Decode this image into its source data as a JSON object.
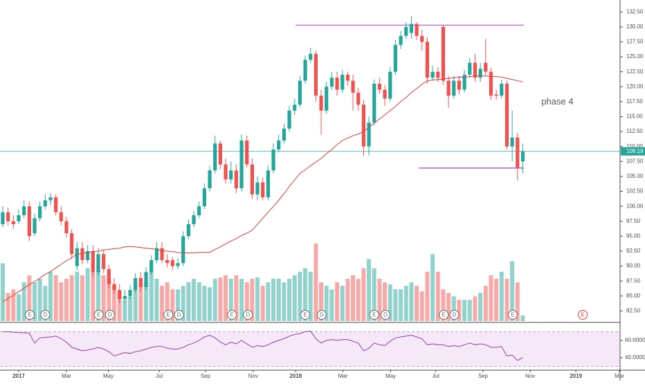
{
  "chart_data": {
    "type": "candlestick",
    "up_color": "#26a69a",
    "down_color": "#ef5350",
    "x": [
      -3,
      -2,
      -1,
      0,
      1,
      2,
      3,
      4,
      5,
      6,
      7,
      8,
      9,
      10,
      11,
      12,
      13,
      14,
      15,
      16,
      17,
      18,
      19,
      20,
      21,
      22,
      23,
      24,
      25,
      26,
      27,
      28,
      29,
      30,
      31,
      32,
      33,
      34,
      35,
      36,
      37,
      38,
      39,
      40,
      41,
      42,
      43,
      44,
      45,
      46,
      47,
      48,
      49,
      50,
      51,
      52,
      53,
      54,
      55,
      56,
      57,
      58,
      59,
      60,
      61,
      62,
      63,
      64,
      65,
      66,
      67,
      68,
      69,
      70,
      71,
      72,
      73,
      74,
      75,
      76,
      77,
      78,
      79,
      80,
      81,
      82,
      83,
      84,
      85,
      86,
      87,
      88,
      89,
      90,
      91,
      92,
      93,
      94,
      95
    ],
    "open": [
      97,
      99,
      97.5,
      97.5,
      98.5,
      100,
      95.5,
      98,
      100,
      101,
      101.5,
      99,
      97.5,
      95.5,
      90,
      93,
      91,
      92.5,
      89,
      92,
      89.5,
      87,
      86,
      84.5,
      85,
      86,
      88,
      86.5,
      89,
      91,
      93,
      91,
      91,
      90,
      90.5,
      95,
      97,
      98.5,
      100,
      103,
      106,
      110.5,
      107,
      104.5,
      106,
      103,
      111,
      107,
      102,
      104,
      101.5,
      106,
      109.5,
      111,
      113,
      116,
      117,
      121,
      124.5,
      125.5,
      118.5,
      116,
      120,
      121.5,
      119.5,
      122,
      121,
      119,
      117,
      110,
      114,
      120.5,
      119.5,
      118,
      122.5,
      127,
      128.5,
      129,
      130.5,
      128.5,
      127.5,
      121.5,
      122.5,
      130,
      121,
      118.5,
      121,
      119.5,
      122,
      124,
      121.5,
      124,
      122.5,
      118.7,
      118.5,
      120.5,
      110,
      111.5,
      107.5
    ],
    "high": [
      100,
      99.8,
      98.5,
      99.5,
      101,
      100.8,
      98.8,
      100.8,
      102,
      102.2,
      102,
      100,
      98.2,
      96.2,
      94,
      94,
      93.5,
      93.5,
      93,
      92.8,
      90.2,
      88,
      87,
      86,
      86.8,
      88.8,
      89,
      89.8,
      91.8,
      94,
      94,
      92,
      91.5,
      91.3,
      95.8,
      97.8,
      99.2,
      100.8,
      103.8,
      106.8,
      111.8,
      111,
      108,
      107.5,
      107,
      112,
      111.8,
      108,
      105,
      104.8,
      106.8,
      110.5,
      112,
      113.8,
      116.8,
      118,
      121.8,
      125.2,
      126.5,
      126,
      119.5,
      120.8,
      122.5,
      122.5,
      122.8,
      122.5,
      122,
      119.8,
      117.8,
      115,
      121.2,
      121.5,
      120.3,
      123.3,
      127.8,
      129.3,
      130.8,
      131.8,
      130.8,
      129.5,
      128.3,
      123.5,
      123.3,
      130.3,
      121.8,
      121.8,
      121.8,
      122.8,
      124.8,
      125.5,
      124,
      128,
      123.2,
      119.5,
      121.2,
      121,
      116,
      112.3,
      110.5
    ],
    "low": [
      96.5,
      96.8,
      96.2,
      97,
      98,
      94.2,
      95,
      97.5,
      99.5,
      100.2,
      98.5,
      96.8,
      94.8,
      91.2,
      89.3,
      90.3,
      90.5,
      88.3,
      88.4,
      88.8,
      86.3,
      85.3,
      83.8,
      84,
      84.5,
      85.5,
      85.8,
      86,
      88.5,
      90.5,
      90.5,
      89.8,
      89.3,
      89.5,
      90,
      94.5,
      96.5,
      98,
      99.5,
      102.5,
      105.5,
      106.2,
      103.8,
      103.8,
      102.2,
      102.5,
      106.5,
      101.2,
      101,
      101,
      101,
      105.5,
      109,
      110.5,
      112.5,
      115.3,
      116.5,
      120.5,
      124,
      117.5,
      112,
      115.5,
      119.5,
      118.5,
      119,
      120.2,
      116,
      116,
      108.5,
      108.5,
      113.5,
      118.8,
      116.8,
      117.5,
      122,
      126.3,
      128,
      128,
      127.8,
      126,
      120.5,
      121,
      120.8,
      120.3,
      116.5,
      118,
      118.7,
      119,
      121.5,
      120.8,
      120.8,
      121.8,
      117.8,
      117.8,
      118,
      109.5,
      107.5,
      104.3,
      105.5
    ],
    "close": [
      99,
      97.5,
      97,
      98.5,
      100,
      95,
      98,
      100,
      101,
      101.5,
      99,
      97.5,
      95.5,
      92,
      93,
      91,
      92.5,
      89,
      92,
      89.5,
      87,
      86,
      84.5,
      85,
      86,
      88,
      86.5,
      89,
      91,
      93,
      91,
      90.5,
      90,
      90.5,
      95,
      97,
      98.5,
      100,
      103,
      106,
      110.5,
      107,
      104.5,
      106,
      103,
      111,
      107,
      102,
      104,
      101.5,
      106,
      109.5,
      111,
      113,
      116,
      117,
      121,
      124.5,
      125.5,
      118.5,
      116,
      120,
      121.5,
      119.5,
      122,
      121,
      119,
      117,
      110,
      114,
      120.5,
      119.5,
      118,
      122.5,
      127,
      128.5,
      130,
      130.5,
      128.5,
      127.5,
      121.5,
      122.5,
      121.5,
      121,
      118.5,
      121,
      119.5,
      122,
      124,
      121.5,
      123,
      122.5,
      118.5,
      118.5,
      120.5,
      110,
      111.5,
      106.5,
      109.19
    ],
    "volume": [
      82,
      40,
      45,
      38,
      55,
      65,
      55,
      60,
      50,
      70,
      65,
      55,
      60,
      65,
      70,
      65,
      75,
      70,
      72,
      65,
      60,
      50,
      42,
      30,
      35,
      45,
      50,
      55,
      70,
      60,
      50,
      55,
      45,
      45,
      50,
      55,
      60,
      55,
      50,
      48,
      60,
      62,
      65,
      60,
      65,
      60,
      55,
      60,
      62,
      50,
      55,
      60,
      60,
      55,
      60,
      65,
      70,
      75,
      70,
      110,
      55,
      50,
      45,
      55,
      50,
      60,
      65,
      60,
      75,
      88,
      75,
      60,
      55,
      52,
      45,
      45,
      50,
      55,
      50,
      42,
      70,
      95,
      70,
      45,
      40,
      35,
      30,
      30,
      30,
      35,
      40,
      50,
      65,
      60,
      70,
      60,
      85,
      55,
      8
    ],
    "ma": {
      "color": "#e53935",
      "values": [
        84,
        84.6,
        85.1,
        85.7,
        86.3,
        86.9,
        87.4,
        88,
        88.6,
        89.1,
        89.7,
        90.3,
        90.9,
        91.4,
        92,
        92.1,
        92.3,
        92.4,
        92.5,
        92.7,
        92.8,
        92.9,
        93,
        93.2,
        93.3,
        93.2,
        93.1,
        93,
        92.9,
        92.8,
        92.6,
        92.5,
        92.4,
        92.3,
        92.2,
        92.2,
        92.2,
        92.3,
        92.3,
        92.3,
        92.8,
        93.2,
        93.7,
        94.2,
        94.6,
        95.1,
        95.5,
        96,
        97,
        98,
        99,
        100,
        101,
        102.1,
        103.3,
        104.4,
        105.5,
        106.1,
        106.8,
        107.4,
        108,
        108.8,
        109.5,
        110.3,
        111,
        111.4,
        111.8,
        112.1,
        112.5,
        113.2,
        113.9,
        114.6,
        115.3,
        116,
        116.7,
        117.5,
        118.2,
        119,
        119.7,
        120.4,
        121,
        121.1,
        121.2,
        121.3,
        121.4,
        121.5,
        121.6,
        121.6,
        121.7,
        121.8,
        121.8,
        121.8,
        121.7,
        121.7,
        121.6,
        121.4,
        121.2,
        121,
        120.8
      ]
    },
    "rsi": {
      "color": "#8e3fa8",
      "values": [
        70,
        70,
        69.5,
        69,
        68.8,
        68.4,
        57,
        63,
        63.5,
        64,
        65,
        62,
        58,
        52,
        50,
        48,
        49,
        50,
        52,
        50,
        47,
        42,
        44,
        46,
        45,
        47,
        48,
        50,
        52,
        53,
        53,
        51,
        50,
        50,
        52,
        55,
        57,
        60,
        64,
        66,
        63,
        58,
        55,
        58,
        56,
        60,
        56,
        52,
        54,
        53,
        55,
        58,
        60,
        62,
        65,
        67,
        68,
        70,
        71,
        62,
        57,
        60,
        61,
        60,
        61,
        61,
        59,
        57,
        48,
        51,
        57,
        55,
        54,
        59,
        63,
        64,
        65,
        66,
        64,
        62,
        55,
        56,
        55,
        55,
        53,
        54,
        53,
        55,
        57,
        55,
        56,
        55,
        52,
        52,
        53,
        42,
        43,
        37,
        40
      ],
      "rlim": [
        25.6,
        79.2
      ],
      "band": [
        30,
        70
      ],
      "ticks": [
        {
          "value": 60,
          "label": "60.0000"
        },
        {
          "value": 40,
          "label": "40.0000"
        }
      ]
    },
    "xlim": [
      -3.52,
      113.2
    ],
    "xticks": [
      {
        "value": 0,
        "label": "2017"
      },
      {
        "value": 9,
        "label": "Mar"
      },
      {
        "value": 16.9,
        "label": "May"
      },
      {
        "value": 26.5,
        "label": "Jul"
      },
      {
        "value": 35.2,
        "label": "Sep"
      },
      {
        "value": 44.2,
        "label": "Nov"
      },
      {
        "value": 52.2,
        "label": "2018"
      },
      {
        "value": 61.1,
        "label": "Mar"
      },
      {
        "value": 70.1,
        "label": "May"
      },
      {
        "value": 78.6,
        "label": "Jul"
      },
      {
        "value": 87.5,
        "label": "Sep"
      },
      {
        "value": 96.4,
        "label": "Nov"
      },
      {
        "value": 105,
        "label": "2019"
      },
      {
        "value": 113.2,
        "label": "Mar"
      }
    ],
    "ylim": [
      80,
      134.5
    ],
    "yticks": [
      {
        "value": 132.5,
        "label": "132.50"
      },
      {
        "value": 130,
        "label": "130.00"
      },
      {
        "value": 127.5,
        "label": "127.50"
      },
      {
        "value": 125,
        "label": "125.00"
      },
      {
        "value": 122.5,
        "label": "122.50"
      },
      {
        "value": 120,
        "label": "120.00"
      },
      {
        "value": 117.5,
        "label": "117.50"
      },
      {
        "value": 115,
        "label": "115.00"
      },
      {
        "value": 112.5,
        "label": "112.50"
      },
      {
        "value": 110,
        "label": "110.00"
      },
      {
        "value": 107.5,
        "label": "107.50"
      },
      {
        "value": 105,
        "label": "105.00"
      },
      {
        "value": 102.5,
        "label": "102.50"
      },
      {
        "value": 100,
        "label": "100.00"
      },
      {
        "value": 97.5,
        "label": "97.50"
      },
      {
        "value": 95,
        "label": "95.00"
      },
      {
        "value": 92.5,
        "label": "92.50"
      },
      {
        "value": 90,
        "label": "90.00"
      },
      {
        "value": 87.5,
        "label": "87.50"
      },
      {
        "value": 85,
        "label": "85.00"
      },
      {
        "value": 82.5,
        "label": "82.50"
      }
    ],
    "last_price": 109.19,
    "levels": [
      {
        "value": 130.3,
        "from": 52.2,
        "to": 95.2,
        "color": "#c04fd8"
      },
      {
        "value": 106.4,
        "from": 75.4,
        "to": 95.2,
        "color": "#9c3fc8"
      }
    ],
    "annotations": [
      {
        "text": "phase 4",
        "x": 98.5,
        "y": 117.4
      }
    ],
    "events": [
      {
        "label": "E",
        "x": 2.1,
        "color": "#666666"
      },
      {
        "label": "D",
        "x": 5,
        "color": "#666666"
      },
      {
        "label": "E",
        "x": 15.1,
        "color": "#666666"
      },
      {
        "label": "D",
        "x": 17.2,
        "color": "#666666"
      },
      {
        "label": "E",
        "x": 28.2,
        "color": "#666666"
      },
      {
        "label": "D",
        "x": 30.2,
        "color": "#666666"
      },
      {
        "label": "E",
        "x": 40.2,
        "color": "#666666"
      },
      {
        "label": "D",
        "x": 43.2,
        "color": "#666666"
      },
      {
        "label": "E",
        "x": 54,
        "color": "#666666"
      },
      {
        "label": "D",
        "x": 57.1,
        "color": "#666666"
      },
      {
        "label": "E",
        "x": 67,
        "color": "#666666"
      },
      {
        "label": "D",
        "x": 69.1,
        "color": "#666666"
      },
      {
        "label": "E",
        "x": 80.1,
        "color": "#666666"
      },
      {
        "label": "D",
        "x": 82.1,
        "color": "#666666"
      },
      {
        "label": "E",
        "x": 93.1,
        "color": "#666666"
      },
      {
        "label": "E",
        "x": 106.3,
        "color": "#e53935"
      }
    ]
  }
}
